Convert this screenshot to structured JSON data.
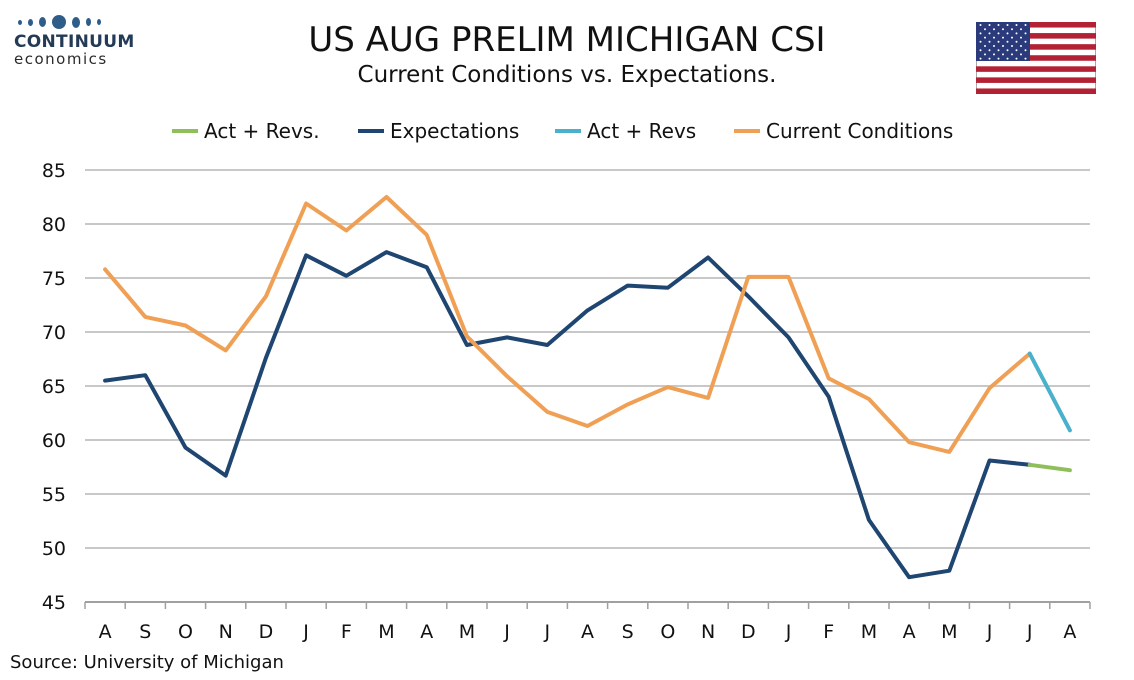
{
  "logo": {
    "name": "CONTINUUM",
    "sub": "economics"
  },
  "title": "US AUG PRELIM MICHIGAN CSI",
  "subtitle": "Current Conditions vs. Expectations.",
  "source": "Source: University of Michigan",
  "colors": {
    "expectations": "#1f4571",
    "current": "#f0a055",
    "act_revs_dot": "#8fbf5a",
    "act_revs": "#4bb0cc",
    "grid": "#c8c8c8"
  },
  "chart_data": {
    "type": "line",
    "categories": [
      "A",
      "S",
      "O",
      "N",
      "D",
      "J",
      "F",
      "M",
      "A",
      "M",
      "J",
      "J",
      "A",
      "S",
      "O",
      "N",
      "D",
      "J",
      "F",
      "M",
      "A",
      "M",
      "J",
      "J",
      "A"
    ],
    "ylim": [
      45,
      85
    ],
    "yticks": [
      85,
      80,
      75,
      70,
      65,
      60,
      55,
      50,
      45
    ],
    "legend": [
      "Act + Revs.",
      "Expectations",
      "Act + Revs",
      "Current Conditions"
    ],
    "legend_position": "top",
    "grid": true,
    "series": [
      {
        "name": "Expectations",
        "color": "#1f4571",
        "values": [
          65.5,
          66.0,
          59.3,
          56.7,
          67.6,
          77.1,
          75.2,
          77.4,
          76.0,
          68.8,
          69.5,
          68.8,
          72.0,
          74.3,
          74.1,
          76.9,
          73.3,
          69.5,
          64.0,
          52.6,
          47.3,
          47.9,
          58.1,
          57.7,
          null
        ]
      },
      {
        "name": "Act + Revs.",
        "color": "#8fbf5a",
        "values": [
          null,
          null,
          null,
          null,
          null,
          null,
          null,
          null,
          null,
          null,
          null,
          null,
          null,
          null,
          null,
          null,
          null,
          null,
          null,
          null,
          null,
          null,
          null,
          57.7,
          57.2
        ]
      },
      {
        "name": "Current Conditions",
        "color": "#f0a055",
        "values": [
          75.8,
          71.4,
          70.6,
          68.3,
          73.3,
          81.9,
          79.4,
          82.5,
          79.0,
          69.6,
          65.9,
          62.6,
          61.3,
          63.3,
          64.9,
          63.9,
          75.1,
          75.1,
          65.7,
          63.8,
          59.8,
          58.9,
          64.8,
          68.0,
          null
        ]
      },
      {
        "name": "Act + Revs",
        "color": "#4bb0cc",
        "values": [
          null,
          null,
          null,
          null,
          null,
          null,
          null,
          null,
          null,
          null,
          null,
          null,
          null,
          null,
          null,
          null,
          null,
          null,
          null,
          null,
          null,
          null,
          null,
          68.0,
          60.9
        ]
      }
    ]
  }
}
